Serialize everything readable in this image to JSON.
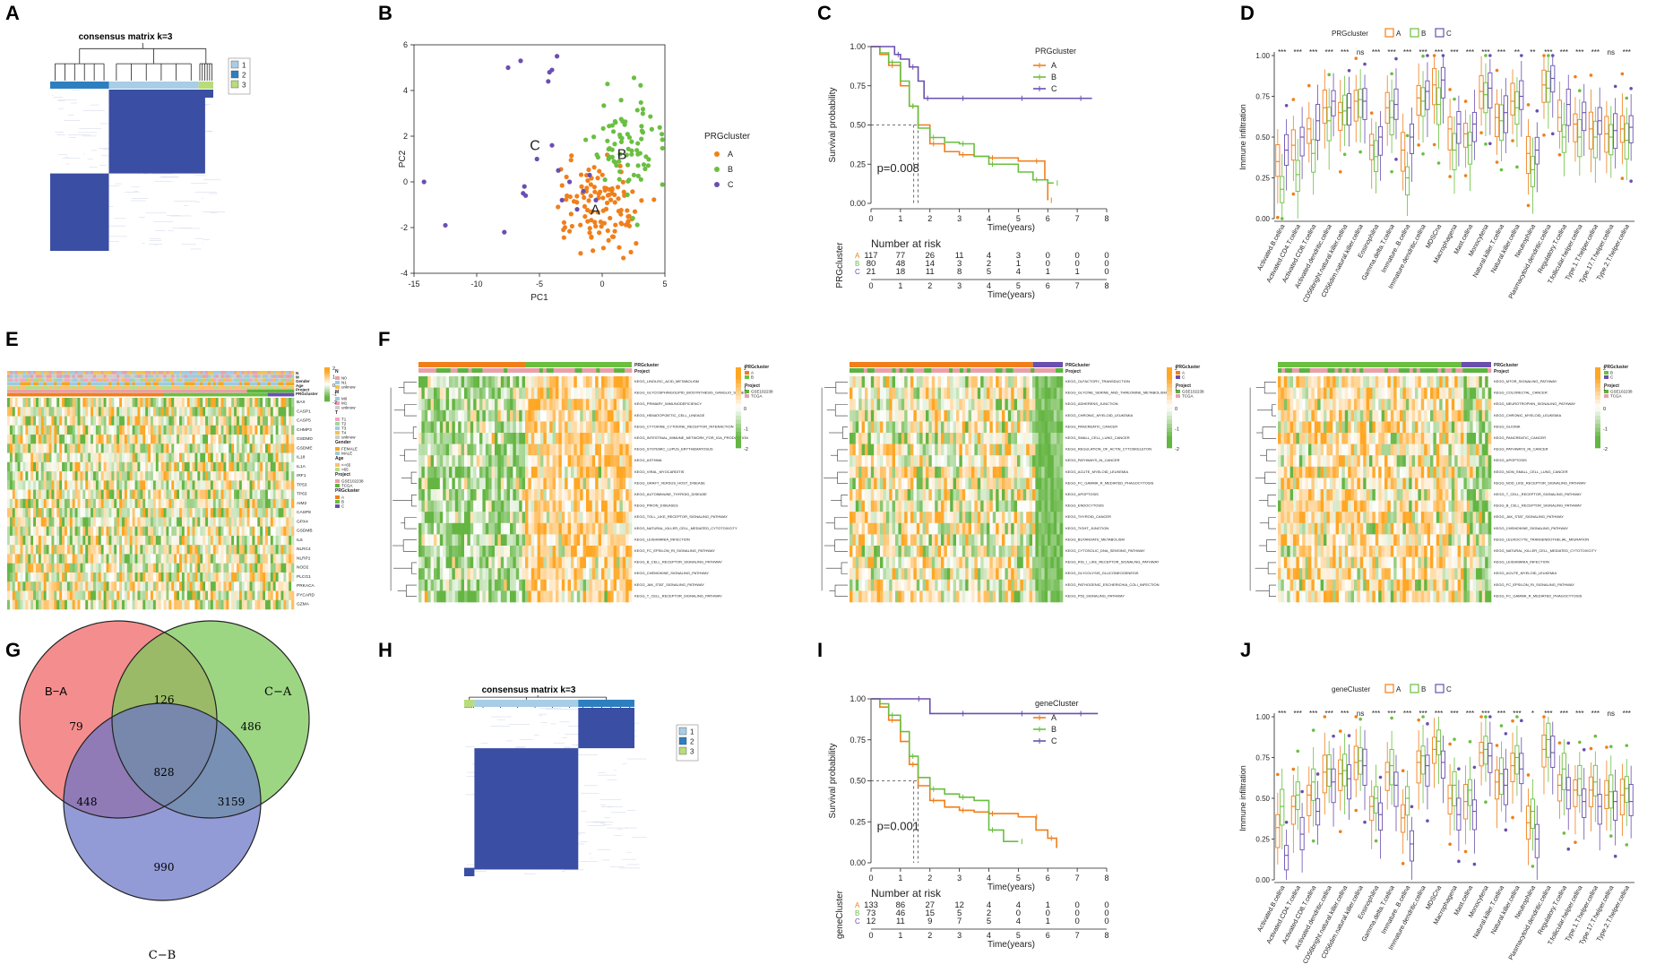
{
  "panel_letters": [
    "A",
    "B",
    "C",
    "D",
    "E",
    "F",
    "G",
    "H",
    "I",
    "J"
  ],
  "colors": {
    "A": "#f07f1b",
    "B": "#6abf40",
    "C": "#6a4fb0",
    "blue": "#3a4ea3",
    "light": "#a8cde6",
    "mid": "#2e7fc0",
    "pale": "#b8dc7a",
    "orange": "#f5a623",
    "green": "#5cb33f",
    "pink": "#e9a0a8"
  },
  "chart_data": [
    {
      "panel": "A",
      "type": "heatmap",
      "title": "consensus matrix k=3",
      "legend": [
        "1",
        "2",
        "3"
      ]
    },
    {
      "panel": "B",
      "type": "scatter",
      "xlabel": "PC1",
      "ylabel": "PC2",
      "xlim": [
        -15,
        5
      ],
      "ylim": [
        -4,
        6
      ],
      "xticks": [
        "-15",
        "-10",
        "-5",
        "0",
        "5"
      ],
      "yticks": [
        "-4",
        "-2",
        "0",
        "2",
        "4",
        "6"
      ],
      "legend_title": "PRGcluster",
      "legend": [
        "A",
        "B",
        "C"
      ],
      "cluster_labels": [
        "A",
        "B",
        "C"
      ]
    },
    {
      "panel": "C",
      "type": "line",
      "title": "",
      "xlabel": "Time(years)",
      "ylabel": "Survival probability",
      "xlim": [
        0,
        8
      ],
      "ylim": [
        0,
        1
      ],
      "xticks": [
        "0",
        "1",
        "2",
        "3",
        "4",
        "5",
        "6",
        "7",
        "8"
      ],
      "yticks": [
        "0.00",
        "0.25",
        "0.50",
        "0.75",
        "1.00"
      ],
      "legend_title": "PRGcluster",
      "legend": [
        "A",
        "B",
        "C"
      ],
      "pvalue": "p=0.008",
      "series": [
        {
          "name": "A",
          "x": [
            0,
            0.3,
            0.6,
            1.0,
            1.3,
            1.6,
            2.0,
            2.5,
            3.0,
            3.5,
            4.0,
            5.0,
            5.5,
            5.9,
            6.0
          ],
          "y": [
            1.0,
            0.95,
            0.88,
            0.75,
            0.62,
            0.5,
            0.38,
            0.33,
            0.31,
            0.3,
            0.29,
            0.27,
            0.27,
            0.15,
            0.02
          ]
        },
        {
          "name": "B",
          "x": [
            0,
            0.3,
            0.6,
            1.0,
            1.3,
            1.6,
            2.0,
            2.5,
            3.0,
            3.5,
            4.0,
            5.0,
            5.5,
            6.0,
            6.2
          ],
          "y": [
            1.0,
            0.96,
            0.9,
            0.78,
            0.62,
            0.48,
            0.42,
            0.39,
            0.38,
            0.3,
            0.25,
            0.2,
            0.15,
            0.13,
            0.13
          ]
        },
        {
          "name": "C",
          "x": [
            0,
            0.5,
            0.8,
            1.0,
            1.3,
            1.6,
            1.8,
            2.2,
            3.0,
            4.0,
            5.0,
            6.0,
            7.0,
            7.5
          ],
          "y": [
            1.0,
            1.0,
            0.95,
            0.92,
            0.87,
            0.78,
            0.67,
            0.67,
            0.67,
            0.67,
            0.67,
            0.67,
            0.67,
            0.67
          ]
        }
      ],
      "risk_title": "Number at risk",
      "risk_label": "PRGcluster",
      "risk_rows": [
        [
          "117",
          "77",
          "26",
          "11",
          "4",
          "3",
          "0",
          "0",
          "0"
        ],
        [
          "80",
          "48",
          "14",
          "3",
          "2",
          "1",
          "0",
          "0",
          "0"
        ],
        [
          "21",
          "18",
          "11",
          "8",
          "5",
          "4",
          "1",
          "1",
          "0"
        ]
      ]
    },
    {
      "panel": "D",
      "type": "box",
      "ylabel": "Immune infiltration",
      "legend_title": "PRGcluster",
      "legend": [
        "A",
        "B",
        "C"
      ],
      "yticks": [
        "0.00",
        "0.25",
        "0.50",
        "0.75",
        "1.00"
      ],
      "categories": [
        "Activated.B.cellna",
        "Activated.CD4.T.cellna",
        "Activated.CD8.T.cellna",
        "Activated.dendritic.cellna",
        "CD56bright.natural.killer.cellna",
        "CD56dim.natural.killer.cellna",
        "Eosinophilna",
        "Gamma.delta.T.cellna",
        "Immature..B.cellna",
        "Immature.dendritic.cellna",
        "MDSCna",
        "Macrophagena",
        "Mast.cellna",
        "Monocytena",
        "Natural.killer.T.cellna",
        "Natural.killer.cellna",
        "Neutrophilna",
        "Plasmacytoid.dendritic.cellna",
        "Regulatory.T.cellna",
        "T.follicular.helper.cellna",
        "Type.1.T.helper.cellna",
        "Type.17.T.helper.cellna",
        "Type.2.T.helper.cellna"
      ],
      "sig": [
        "***",
        "***",
        "***",
        "***",
        "***",
        "ns",
        "***",
        "***",
        "***",
        "***",
        "***",
        "***",
        "***",
        "***",
        "***",
        "**",
        "**",
        "***",
        "***",
        "***",
        "***",
        "ns",
        "***"
      ],
      "medians": [
        [
          0.35,
          0.18,
          0.42
        ],
        [
          0.45,
          0.27,
          0.5
        ],
        [
          0.55,
          0.4,
          0.6
        ],
        [
          0.68,
          0.6,
          0.72
        ],
        [
          0.65,
          0.66,
          0.68
        ],
        [
          0.72,
          0.73,
          0.72
        ],
        [
          0.45,
          0.38,
          0.5
        ],
        [
          0.68,
          0.62,
          0.7
        ],
        [
          0.42,
          0.25,
          0.5
        ],
        [
          0.74,
          0.72,
          0.78
        ],
        [
          0.82,
          0.7,
          0.85
        ],
        [
          0.55,
          0.42,
          0.58
        ],
        [
          0.52,
          0.45,
          0.58
        ],
        [
          0.78,
          0.76,
          0.8
        ],
        [
          0.62,
          0.6,
          0.65
        ],
        [
          0.72,
          0.68,
          0.75
        ],
        [
          0.4,
          0.3,
          0.42
        ],
        [
          0.82,
          0.8,
          0.86
        ],
        [
          0.62,
          0.5,
          0.7
        ],
        [
          0.58,
          0.5,
          0.65
        ],
        [
          0.55,
          0.5,
          0.6
        ],
        [
          0.52,
          0.5,
          0.54
        ],
        [
          0.55,
          0.48,
          0.56
        ]
      ]
    },
    {
      "panel": "E",
      "type": "heatmap",
      "annotations": [
        "N",
        "M",
        "Gender",
        "Age",
        "Project",
        "PRGcluster"
      ],
      "genes": [
        "BAX",
        "CASP1",
        "CASP5",
        "CHMP3",
        "GSDMD",
        "GSDME",
        "IL18",
        "IL1A",
        "IRF1",
        "TP53",
        "TP63",
        "AIM2",
        "CASP8",
        "GPX4",
        "GSDMB",
        "IL6",
        "NLRC4",
        "NLRP1",
        "NOD2",
        "PLCG1",
        "PRKACA",
        "PYCARD",
        "GZMA"
      ],
      "legend_groups": [
        {
          "title": "N",
          "items": [
            "N0",
            "N1",
            "unknow"
          ]
        },
        {
          "title": "M",
          "items": [
            "M0",
            "M1",
            "unknow"
          ]
        },
        {
          "title": "T",
          "items": [
            "T1",
            "T2",
            "T3",
            "T4",
            "unknow"
          ]
        },
        {
          "title": "Gender",
          "items": [
            "FEMALE",
            "MALE"
          ]
        },
        {
          "title": "Age",
          "items": [
            "<=65",
            ">65"
          ]
        },
        {
          "title": "Project",
          "items": [
            "GSE102238",
            "TCGA"
          ]
        },
        {
          "title": "PRGcluster",
          "items": [
            "A",
            "B",
            "C"
          ]
        }
      ],
      "scale": [
        "2",
        "1",
        "0",
        "-1",
        "-2"
      ]
    },
    {
      "panel": "F",
      "type": "heatmap",
      "subpanels": [
        {
          "clusters": [
            "A",
            "B"
          ],
          "annotations": [
            "PRGcluster",
            "Project"
          ],
          "projects": [
            "GSE102238",
            "TCGA"
          ],
          "pathways": [
            "KEGG_LINOLEIC_ACID_METABOLISM",
            "KEGG_GLYCOSPHINGOLIPID_BIOSYNTHESIS_GANGLIO_SERIES",
            "KEGG_PRIMARY_IMMUNODEFICIENCY",
            "KEGG_HEMATOPOIETIC_CELL_LINEAGE",
            "KEGG_CYTOKINE_CYTOKINE_RECEPTOR_INTERACTION",
            "KEGG_INTESTINAL_IMMUNE_NETWORK_FOR_IGA_PRODUCTION",
            "KEGG_SYSTEMIC_LUPUS_ERYTHEMATOSUS",
            "KEGG_ASTHMA",
            "KEGG_VIRAL_MYOCARDITIS",
            "KEGG_GRAFT_VERSUS_HOST_DISEASE",
            "KEGG_AUTOIMMUNE_THYROID_DISEASE",
            "KEGG_PRION_DISEASES",
            "KEGG_TOLL_LIKE_RECEPTOR_SIGNALING_PATHWAY",
            "KEGG_NATURAL_KILLER_CELL_MEDIATED_CYTOTOXICITY",
            "KEGG_LEISHMANIA_INFECTION",
            "KEGG_FC_EPSILON_RI_SIGNALING_PATHWAY",
            "KEGG_B_CELL_RECEPTOR_SIGNALING_PATHWAY",
            "KEGG_CHEMOKINE_SIGNALING_PATHWAY",
            "KEGG_JAK_STAT_SIGNALING_PATHWAY",
            "KEGG_T_CELL_RECEPTOR_SIGNALING_PATHWAY"
          ]
        },
        {
          "clusters": [
            "A",
            "C"
          ],
          "annotations": [
            "PRGcluster",
            "Project"
          ],
          "projects": [
            "GSE102238",
            "TCGA"
          ],
          "pathways": [
            "KEGG_OLFACTORY_TRANSDUCTION",
            "KEGG_GLYCINE_SERINE_AND_THREONINE_METABOLISM",
            "KEGG_ADHERENS_JUNCTION",
            "KEGG_CHRONIC_MYELOID_LEUKEMIA",
            "KEGG_PANCREATIC_CANCER",
            "KEGG_SMALL_CELL_LUNG_CANCER",
            "KEGG_REGULATION_OF_ACTIN_CYTOSKELETON",
            "KEGG_PATHWAYS_IN_CANCER",
            "KEGG_ACUTE_MYELOID_LEUKEMIA",
            "KEGG_FC_GAMMA_R_MEDIATED_PHAGOCYTOSIS",
            "KEGG_APOPTOSIS",
            "KEGG_ENDOCYTOSIS",
            "KEGG_THYROID_CANCER",
            "KEGG_TIGHT_JUNCTION",
            "KEGG_BUTANOATE_METABOLISM",
            "KEGG_CYTOSOLIC_DNA_SENSING_PATHWAY",
            "KEGG_RIG_I_LIKE_RECEPTOR_SIGNALING_PATHWAY",
            "KEGG_GLYCOLYSIS_GLUCONEOGENESIS",
            "KEGG_PATHOGENIC_ESCHERICHIA_COLI_INFECTION",
            "KEGG_P53_SIGNALING_PATHWAY"
          ]
        },
        {
          "clusters": [
            "B",
            "C"
          ],
          "annotations": [
            "PRGcluster",
            "Project"
          ],
          "projects": [
            "GSE102238",
            "TCGA"
          ],
          "pathways": [
            "KEGG_MTOR_SIGNALING_PATHWAY",
            "KEGG_COLORECTAL_CANCER",
            "KEGG_NEUROTROPHIN_SIGNALING_PATHWAY",
            "KEGG_CHRONIC_MYELOID_LEUKEMIA",
            "KEGG_GLIOMA",
            "KEGG_PANCREATIC_CANCER",
            "KEGG_PATHWAYS_IN_CANCER",
            "KEGG_APOPTOSIS",
            "KEGG_NON_SMALL_CELL_LUNG_CANCER",
            "KEGG_NOD_LIKE_RECEPTOR_SIGNALING_PATHWAY",
            "KEGG_T_CELL_RECEPTOR_SIGNALING_PATHWAY",
            "KEGG_B_CELL_RECEPTOR_SIGNALING_PATHWAY",
            "KEGG_JAK_STAT_SIGNALING_PATHWAY",
            "KEGG_CHEMOKINE_SIGNALING_PATHWAY",
            "KEGG_LEUKOCYTE_TRANSENDOTHELIAL_MIGRATION",
            "KEGG_NATURAL_KILLER_CELL_MEDIATED_CYTOTOXICITY",
            "KEGG_LEISHMANIA_INFECTION",
            "KEGG_ACUTE_MYELOID_LEUKEMIA",
            "KEGG_FC_EPSILON_RI_SIGNALING_PATHWAY",
            "KEGG_FC_GAMMA_R_MEDIATED_PHAGOCYTOSIS"
          ]
        }
      ],
      "scale": [
        "2",
        "1",
        "0",
        "-1",
        "-2"
      ]
    },
    {
      "panel": "G",
      "type": "venn",
      "sets": [
        "B−A",
        "C−A",
        "C−B"
      ],
      "regions": {
        "B_only": "79",
        "C_A_only": "486",
        "C_B_only": "990",
        "BA_CA": "126",
        "BA_CB": "448",
        "CA_CB": "3159",
        "all": "828"
      }
    },
    {
      "panel": "H",
      "type": "heatmap",
      "title": "consensus matrix k=3",
      "legend": [
        "1",
        "2",
        "3"
      ]
    },
    {
      "panel": "I",
      "type": "line",
      "xlabel": "Time(years)",
      "ylabel": "Survival probability",
      "xlim": [
        0,
        8
      ],
      "ylim": [
        0,
        1
      ],
      "xticks": [
        "0",
        "1",
        "2",
        "3",
        "4",
        "5",
        "6",
        "7",
        "8"
      ],
      "yticks": [
        "0.00",
        "0.25",
        "0.50",
        "0.75",
        "1.00"
      ],
      "legend_title": "geneCluster",
      "legend": [
        "A",
        "B",
        "C"
      ],
      "pvalue": "p=0.001",
      "series": [
        {
          "name": "A",
          "x": [
            0,
            0.3,
            0.6,
            1.0,
            1.3,
            1.6,
            2.0,
            2.5,
            3.0,
            3.5,
            4.0,
            5.0,
            5.5,
            5.6,
            6.0,
            6.3
          ],
          "y": [
            1.0,
            0.95,
            0.87,
            0.74,
            0.6,
            0.47,
            0.38,
            0.34,
            0.32,
            0.31,
            0.3,
            0.28,
            0.28,
            0.2,
            0.15,
            0.09
          ]
        },
        {
          "name": "B",
          "x": [
            0,
            0.3,
            0.6,
            1.0,
            1.3,
            1.6,
            2.0,
            2.5,
            3.0,
            3.5,
            4.0,
            4.5,
            5.0
          ],
          "y": [
            1.0,
            0.97,
            0.9,
            0.8,
            0.65,
            0.52,
            0.45,
            0.42,
            0.4,
            0.38,
            0.2,
            0.13,
            0.13
          ]
        },
        {
          "name": "C",
          "x": [
            0,
            1.0,
            1.5,
            2.0,
            3.0,
            4.0,
            5.0,
            6.0,
            7.0,
            7.7
          ],
          "y": [
            1.0,
            1.0,
            1.0,
            0.91,
            0.91,
            0.91,
            0.91,
            0.91,
            0.91,
            0.91
          ]
        }
      ],
      "risk_title": "Number at risk",
      "risk_label": "geneCluster",
      "risk_rows": [
        [
          "133",
          "86",
          "27",
          "12",
          "4",
          "4",
          "1",
          "0",
          "0"
        ],
        [
          "73",
          "46",
          "15",
          "5",
          "2",
          "0",
          "0",
          "0",
          "0"
        ],
        [
          "12",
          "11",
          "9",
          "7",
          "5",
          "4",
          "1",
          "0",
          "0"
        ]
      ]
    },
    {
      "panel": "J",
      "type": "box",
      "ylabel": "Immune infiltration",
      "legend_title": "geneCluster",
      "legend": [
        "A",
        "B",
        "C"
      ],
      "yticks": [
        "0.00",
        "0.25",
        "0.50",
        "0.75",
        "1.00"
      ],
      "categories": [
        "Activated.B.cellna",
        "Activated.CD4.T.cellna",
        "Activated.CD8.T.cellna",
        "Activated.dendritic.cellna",
        "CD56bright.natural.killer.cellna",
        "CD56dim.natural.killer.cellna",
        "Eosinophilna",
        "Gamma.delta.T.cellna",
        "Immature..B.cellna",
        "Immature.dendritic.cellna",
        "MDSCna",
        "Macrophagena",
        "Mast.cellna",
        "Monocytena",
        "Natural.killer.T.cellna",
        "Natural.killer.cellna",
        "Neutrophilna",
        "Plasmacytoid.dendritic.cellna",
        "Regulatory.T.cellna",
        "T.follicular.helper.cellna",
        "Type.1.T.helper.cellna",
        "Type.17.T.helper.cellna",
        "Type.2.T.helper.cellna"
      ],
      "sig": [
        "***",
        "***",
        "***",
        "***",
        "***",
        "ns",
        "***",
        "***",
        "***",
        "***",
        "***",
        "***",
        "***",
        "***",
        "***",
        "***",
        "*",
        "***",
        "***",
        "***",
        "***",
        "ns",
        "***"
      ],
      "medians": [
        [
          0.32,
          0.45,
          0.15
        ],
        [
          0.45,
          0.52,
          0.28
        ],
        [
          0.52,
          0.6,
          0.42
        ],
        [
          0.66,
          0.68,
          0.6
        ],
        [
          0.65,
          0.67,
          0.62
        ],
        [
          0.72,
          0.73,
          0.7
        ],
        [
          0.45,
          0.5,
          0.4
        ],
        [
          0.66,
          0.7,
          0.58
        ],
        [
          0.38,
          0.5,
          0.22
        ],
        [
          0.72,
          0.76,
          0.7
        ],
        [
          0.8,
          0.85,
          0.72
        ],
        [
          0.5,
          0.58,
          0.4
        ],
        [
          0.48,
          0.55,
          0.42
        ],
        [
          0.78,
          0.8,
          0.76
        ],
        [
          0.6,
          0.65,
          0.58
        ],
        [
          0.7,
          0.75,
          0.68
        ],
        [
          0.35,
          0.42,
          0.25
        ],
        [
          0.8,
          0.86,
          0.78
        ],
        [
          0.58,
          0.68,
          0.55
        ],
        [
          0.55,
          0.62,
          0.48
        ],
        [
          0.55,
          0.6,
          0.45
        ],
        [
          0.52,
          0.54,
          0.48
        ],
        [
          0.52,
          0.56,
          0.48
        ]
      ]
    }
  ]
}
